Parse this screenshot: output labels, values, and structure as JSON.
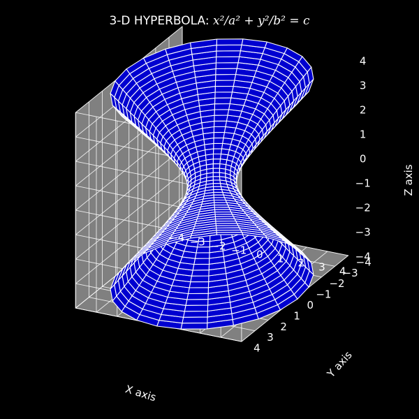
{
  "chart_data": {
    "type": "surface3d",
    "title_prefix": "3-D HYPERBOLA: ",
    "title_math": "x²/a² + y²/b² = c",
    "xlabel": "X axis",
    "ylabel": "Y axis",
    "zlabel": "Z axis",
    "xlim": [
      -4,
      4
    ],
    "ylim": [
      -4,
      4
    ],
    "zlim": [
      -4,
      4
    ],
    "x_ticks": [
      "−4",
      "−3",
      "−2",
      "−1",
      "0",
      "1",
      "2",
      "3",
      "4"
    ],
    "y_ticks": [
      "−4",
      "−3",
      "−2",
      "−1",
      "0",
      "1",
      "2",
      "3",
      "4"
    ],
    "z_ticks": [
      "−4",
      "−3",
      "−2",
      "−1",
      "0",
      "1",
      "2",
      "3",
      "4"
    ],
    "surface": {
      "kind": "hyperboloid of one sheet",
      "a": 1,
      "b": 1,
      "c": 1,
      "z_range": [
        -4,
        4
      ]
    },
    "colors": {
      "background": "#000000",
      "pane": "#808080",
      "grid": "#ffffff",
      "surface": "#0000d0",
      "mesh": "#ffffff"
    },
    "grid": true
  }
}
